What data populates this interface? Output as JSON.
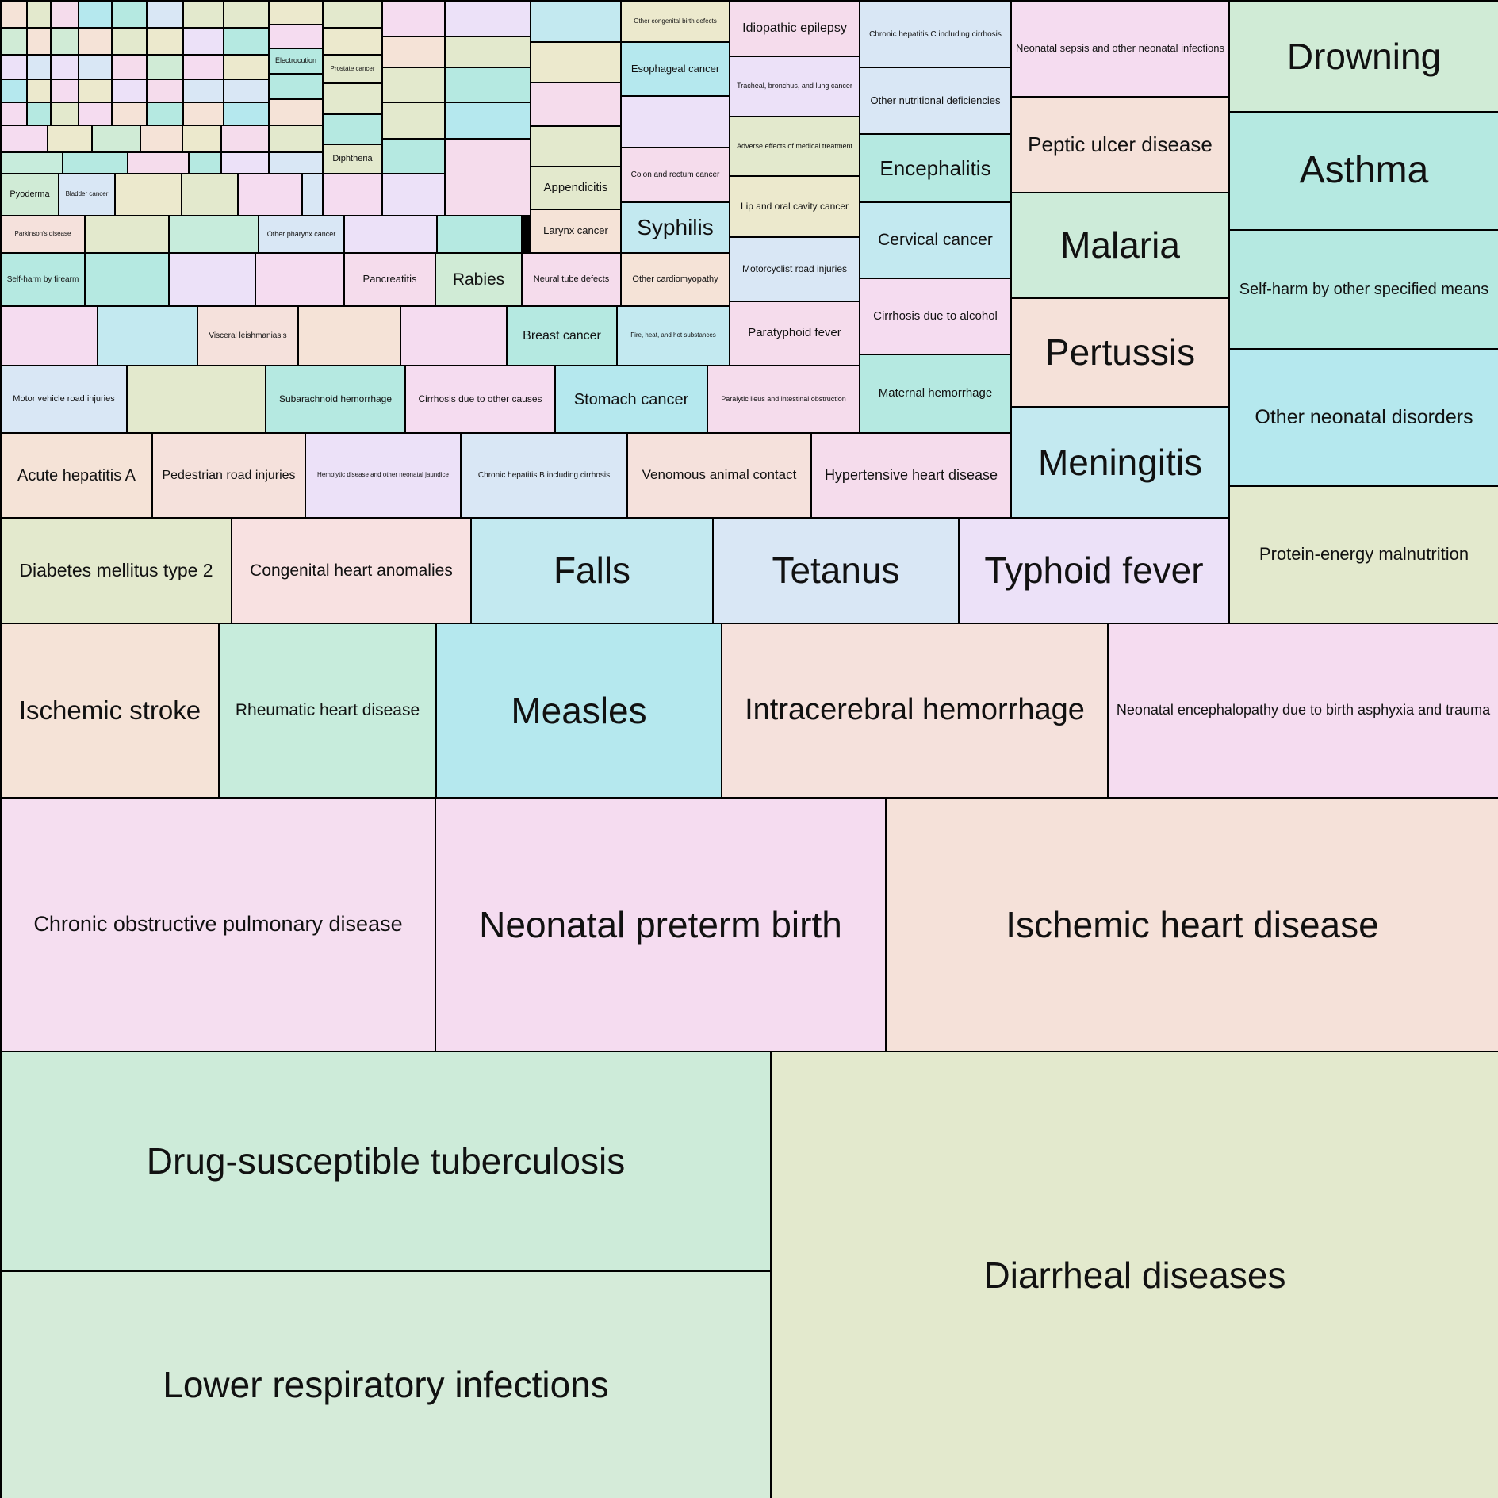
{
  "chart_data": {
    "type": "treemap",
    "cells": [
      {
        "label": "Diarrheal diseases",
        "color": "#e3e9cd"
      },
      {
        "label": "Drug-susceptible tuberculosis",
        "color": "#cdebd9"
      },
      {
        "label": "Lower respiratory infections",
        "color": "#d5ebd9"
      },
      {
        "label": "Ischemic heart disease",
        "color": "#f5e1d9"
      },
      {
        "label": "Neonatal preterm birth",
        "color": "#f5dcf0"
      },
      {
        "label": "Chronic obstructive pulmonary disease",
        "color": "#f5def0"
      },
      {
        "label": "Neonatal encephalopathy due to birth asphyxia and trauma",
        "color": "#f5dcf0"
      },
      {
        "label": "Intracerebral hemorrhage",
        "color": "#f5e1dc"
      },
      {
        "label": "Measles",
        "color": "#b5e8ee"
      },
      {
        "label": "Rheumatic heart disease",
        "color": "#c7ecdc"
      },
      {
        "label": "Ischemic stroke",
        "color": "#f5e3d7"
      },
      {
        "label": "Protein-energy malnutrition",
        "color": "#e3e9cd"
      },
      {
        "label": "Other neonatal disorders",
        "color": "#b5e8ee"
      },
      {
        "label": "Self-harm by other specified means",
        "color": "#b5e9e1"
      },
      {
        "label": "Asthma",
        "color": "#b5e9e1"
      },
      {
        "label": "Drowning",
        "color": "#d0ebd6"
      },
      {
        "label": "Meningitis",
        "color": "#c3e9f0"
      },
      {
        "label": "Pertussis",
        "color": "#f5e1d9"
      },
      {
        "label": "Malaria",
        "color": "#cdebd9"
      },
      {
        "label": "Peptic ulcer disease",
        "color": "#f5e1d9"
      },
      {
        "label": "Neonatal sepsis and other neonatal infections",
        "color": "#f5dcf0"
      },
      {
        "label": "Typhoid fever",
        "color": "#ece1f8"
      },
      {
        "label": "Tetanus",
        "color": "#d9e7f5"
      },
      {
        "label": "Falls",
        "color": "#c3e9f0"
      },
      {
        "label": "Congenital heart anomalies",
        "color": "#f8e1e1"
      },
      {
        "label": "Diabetes mellitus type 2",
        "color": "#e3e9cd"
      },
      {
        "label": "Hypertensive heart disease",
        "color": "#f5dcec"
      },
      {
        "label": "Venomous animal contact",
        "color": "#f5e1dc"
      },
      {
        "label": "Chronic hepatitis B including cirrhosis",
        "color": "#d9e7f5"
      },
      {
        "label": "Hemolytic disease and other neonatal jaundice",
        "color": "#ece1f8"
      },
      {
        "label": "Pedestrian road injuries",
        "color": "#f5e1dc"
      },
      {
        "label": "Acute hepatitis A",
        "color": "#f5e3d7"
      },
      {
        "label": "Maternal hemorrhage",
        "color": "#b5e9e1"
      },
      {
        "label": "Cirrhosis due to alcohol",
        "color": "#f5dcf0"
      },
      {
        "label": "Cervical cancer",
        "color": "#c3e9f0"
      },
      {
        "label": "Encephalitis",
        "color": "#b5e9e1"
      },
      {
        "label": "Other nutritional deficiencies",
        "color": "#d9e7f5"
      },
      {
        "label": "Chronic hepatitis C including cirrhosis",
        "color": "#d9e7f5"
      },
      {
        "label": "Paratyphoid fever",
        "color": "#f5dcec"
      },
      {
        "label": "Motorcyclist road injuries",
        "color": "#d9e7f5"
      },
      {
        "label": "Lip and oral cavity cancer",
        "color": "#ece9cd"
      },
      {
        "label": "Adverse effects of medical treatment",
        "color": "#e3e9cd"
      },
      {
        "label": "Tracheal, bronchus, and lung cancer",
        "color": "#ece1f8"
      },
      {
        "label": "Idiopathic epilepsy",
        "color": "#f5dcec"
      },
      {
        "label": "Paralytic ileus and intestinal obstruction",
        "color": "#f5dcec"
      },
      {
        "label": "Stomach cancer",
        "color": "#b5e8ee"
      },
      {
        "label": "Cirrhosis due to other causes",
        "color": "#f5dcf0"
      },
      {
        "label": "Subarachnoid hemorrhage",
        "color": "#b5e9e1"
      },
      {
        "label": "",
        "color": "#e3e9cd"
      },
      {
        "label": "Motor vehicle road injuries",
        "color": "#d9e7f5"
      },
      {
        "label": "Fire, heat, and hot substances",
        "color": "#c3e9f0"
      },
      {
        "label": "Breast cancer",
        "color": "#b5e9e1"
      },
      {
        "label": "",
        "color": "#f5dcf0"
      },
      {
        "label": "",
        "color": "#f5e3d7"
      },
      {
        "label": "Visceral leishmaniasis",
        "color": "#f5e1dc"
      },
      {
        "label": "",
        "color": "#c3e9f0"
      },
      {
        "label": "",
        "color": "#f5dcf0"
      },
      {
        "label": "Other cardiomyopathy",
        "color": "#f5e3d7"
      },
      {
        "label": "Syphilis",
        "color": "#c3e9f0"
      },
      {
        "label": "Colon and rectum cancer",
        "color": "#f5dcec"
      },
      {
        "label": "",
        "color": "#ece1f8"
      },
      {
        "label": "Esophageal cancer",
        "color": "#b5e8ee"
      },
      {
        "label": "Other congenital birth defects",
        "color": "#ece9cd"
      },
      {
        "label": "Neural tube defects",
        "color": "#f5dcec"
      },
      {
        "label": "Larynx cancer",
        "color": "#f5e3d7"
      },
      {
        "label": "Appendicitis",
        "color": "#e3e9cd"
      },
      {
        "label": "",
        "color": "#e3e9cd"
      },
      {
        "label": "",
        "color": "#f5dcec"
      },
      {
        "label": "",
        "color": "#ece9cd"
      },
      {
        "label": "",
        "color": "#c3e9f0"
      },
      {
        "label": "",
        "color": "#f5dcec"
      },
      {
        "label": "",
        "color": "#b5e8ee"
      },
      {
        "label": "",
        "color": "#b5e9e1"
      },
      {
        "label": "",
        "color": "#e3e9cd"
      },
      {
        "label": "",
        "color": "#ece1f8"
      },
      {
        "label": "",
        "color": "#b5e9e1"
      },
      {
        "label": "",
        "color": "#ece1f8"
      },
      {
        "label": "Other pharynx cancer",
        "color": "#d9e7f5"
      },
      {
        "label": "",
        "color": "#c7ecdc"
      },
      {
        "label": "",
        "color": "#e3e9cd"
      },
      {
        "label": "Parkinson's disease",
        "color": "#f5e1dc"
      },
      {
        "label": "Rabies",
        "color": "#d0ebd6"
      },
      {
        "label": "Pancreatitis",
        "color": "#f5dcec"
      },
      {
        "label": "",
        "color": "#f5dcf0"
      },
      {
        "label": "",
        "color": "#ece1f8"
      },
      {
        "label": "",
        "color": "#b5e9e1"
      },
      {
        "label": "Self-harm by firearm",
        "color": "#b5e9e1"
      },
      {
        "label": "",
        "color": "#ece1f8"
      },
      {
        "label": "",
        "color": "#b5e9e1"
      },
      {
        "label": "",
        "color": "#e3e9cd"
      },
      {
        "label": "",
        "color": "#e3e9cd"
      },
      {
        "label": "",
        "color": "#f5e3d7"
      },
      {
        "label": "",
        "color": "#f5dcf0"
      },
      {
        "label": "",
        "color": "#f5dcf0"
      },
      {
        "label": "Diphtheria",
        "color": "#e3e9cd"
      },
      {
        "label": "",
        "color": "#b5e9e1"
      },
      {
        "label": "",
        "color": "#e3e9cd"
      },
      {
        "label": "Prostate cancer",
        "color": "#e3e9cd"
      },
      {
        "label": "",
        "color": "#ece9cd"
      },
      {
        "label": "",
        "color": "#e3e9cd"
      },
      {
        "label": "",
        "color": "#d9e7f5"
      },
      {
        "label": "",
        "color": "#f5dcf0"
      },
      {
        "label": "",
        "color": "#e3e9cd"
      },
      {
        "label": "",
        "color": "#ece9cd"
      },
      {
        "label": "Bladder cancer",
        "color": "#d9e7f5"
      },
      {
        "label": "Pyoderma",
        "color": "#d0ebd6"
      },
      {
        "label": "",
        "color": "#d9e7f5"
      },
      {
        "label": "",
        "color": "#ece1f8"
      },
      {
        "label": "",
        "color": "#b5e9e1"
      },
      {
        "label": "",
        "color": "#f5dcec"
      },
      {
        "label": "",
        "color": "#b5e9e1"
      },
      {
        "label": "",
        "color": "#c7ecdc"
      },
      {
        "label": "",
        "color": "#b5e8ee"
      },
      {
        "label": "",
        "color": "#f5e3d7"
      },
      {
        "label": "",
        "color": "#b5e9e1"
      },
      {
        "label": "Electrocution",
        "color": "#b5e9e1"
      },
      {
        "label": "",
        "color": "#f5dcf0"
      },
      {
        "label": "",
        "color": "#ece9cd"
      },
      {
        "label": "",
        "color": "#d9e7f5"
      },
      {
        "label": "",
        "color": "#e3e9cd"
      },
      {
        "label": "",
        "color": "#f5dcec"
      },
      {
        "label": "",
        "color": "#ece9cd"
      },
      {
        "label": "",
        "color": "#f5e3d7"
      },
      {
        "label": "",
        "color": "#d0ebd6"
      },
      {
        "label": "",
        "color": "#ece9cd"
      },
      {
        "label": "",
        "color": "#f5dcf0"
      },
      {
        "label": "",
        "color": "#b5e8ee"
      },
      {
        "label": "",
        "color": "#d9e7f5"
      },
      {
        "label": "",
        "color": "#ece9cd"
      },
      {
        "label": "",
        "color": "#b5e9e1"
      },
      {
        "label": "",
        "color": "#e3e9cd"
      },
      {
        "label": "",
        "color": "#f5e3d7"
      },
      {
        "label": "",
        "color": "#d9e7f5"
      },
      {
        "label": "",
        "color": "#f5dcf0"
      },
      {
        "label": "",
        "color": "#ece1f8"
      },
      {
        "label": "",
        "color": "#e3e9cd"
      },
      {
        "label": "",
        "color": "#b5e9e1"
      },
      {
        "label": "",
        "color": "#f5dcec"
      },
      {
        "label": "",
        "color": "#d0ebd6"
      },
      {
        "label": "",
        "color": "#ece9cd"
      },
      {
        "label": "",
        "color": "#d9e7f5"
      },
      {
        "label": "",
        "color": "#f5e3d7"
      },
      {
        "label": "",
        "color": "#ece1f8"
      },
      {
        "label": "",
        "color": "#f5dcec"
      },
      {
        "label": "",
        "color": "#e3e9cd"
      },
      {
        "label": "",
        "color": "#b5e9e1"
      },
      {
        "label": "",
        "color": "#f5dcf0"
      },
      {
        "label": "",
        "color": "#ece9cd"
      },
      {
        "label": "",
        "color": "#d9e7f5"
      },
      {
        "label": "",
        "color": "#f5e3d7"
      },
      {
        "label": "",
        "color": "#b5e8ee"
      },
      {
        "label": "",
        "color": "#e3e9cd"
      },
      {
        "label": "",
        "color": "#f5dcf0"
      },
      {
        "label": "",
        "color": "#ece1f8"
      },
      {
        "label": "",
        "color": "#d0ebd6"
      },
      {
        "label": "",
        "color": "#f5dcec"
      },
      {
        "label": "",
        "color": "#b5e9e1"
      },
      {
        "label": "",
        "color": "#ece9cd"
      },
      {
        "label": "",
        "color": "#d9e7f5"
      },
      {
        "label": "",
        "color": "#f5e3d7"
      },
      {
        "label": "",
        "color": "#e3e9cd"
      },
      {
        "label": "",
        "color": "#f5dcf0"
      },
      {
        "label": "",
        "color": "#b5e8ee"
      },
      {
        "label": "",
        "color": "#ece1f8"
      },
      {
        "label": "",
        "color": "#d0ebd6"
      },
      {
        "label": "",
        "color": "#f5e3d7"
      },
      {
        "label": "",
        "color": "#ece9cd"
      },
      {
        "label": "",
        "color": "#d9e7f5"
      },
      {
        "label": "",
        "color": "#f5dcec"
      },
      {
        "label": "",
        "color": "#b5e9e1"
      },
      {
        "label": "",
        "color": "#e3e9cd"
      },
      {
        "label": "",
        "color": "#ece1f8"
      },
      {
        "label": "",
        "color": "#f5dcf0"
      },
      {
        "label": "",
        "color": "#d0ebd6"
      },
      {
        "label": "",
        "color": "#ece9cd"
      },
      {
        "label": "",
        "color": "#f5e3d7"
      },
      {
        "label": "",
        "color": "#d9e7f5"
      },
      {
        "label": "",
        "color": "#b5e8ee"
      },
      {
        "label": "",
        "color": "#e3e9cd"
      },
      {
        "label": "",
        "color": "#f5dcec"
      }
    ]
  }
}
